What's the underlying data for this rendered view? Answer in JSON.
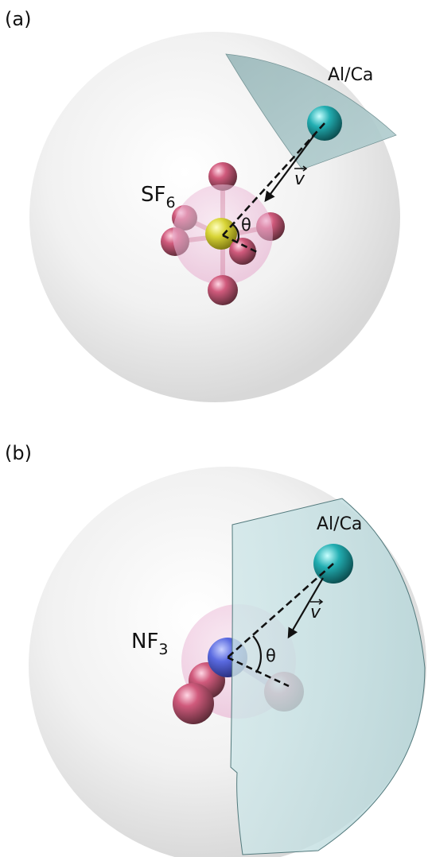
{
  "panel_a": {
    "label": "(a)",
    "molecule": {
      "base": "SF",
      "subscript": "6"
    },
    "atom": "Al/Ca",
    "velocity": "v",
    "angle": "θ"
  },
  "panel_b": {
    "label": "(b)",
    "molecule": {
      "base": "NF",
      "subscript": "3"
    },
    "atom": "Al/Ca",
    "velocity": "v",
    "angle": "θ"
  },
  "colors": {
    "sphere": "#e6e6e6",
    "sector": "#9fc4c6",
    "fluorine": "#c0506e",
    "sulfur": "#d8d436",
    "nitrogen": "#5060d6",
    "metal": "#1fa6aa",
    "halo": "#f0c6e0"
  }
}
